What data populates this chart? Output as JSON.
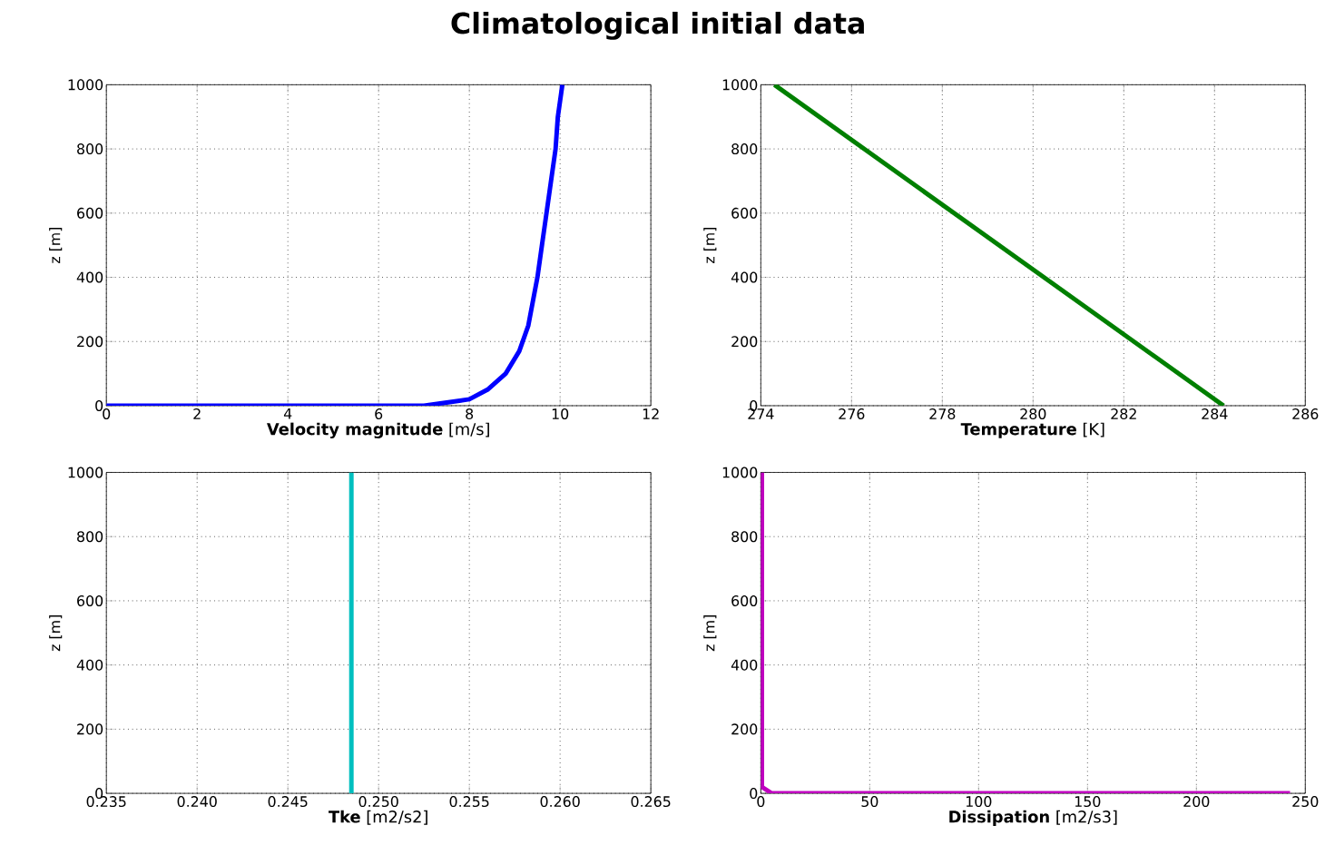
{
  "chart_data": [
    {
      "type": "line",
      "title": "Climatological initial data",
      "xlabel": "**Velocity magnitude** [m/s]",
      "ylabel": "z [m]",
      "xlim": [
        0,
        12
      ],
      "ylim": [
        0,
        1000
      ],
      "xticks": [
        0,
        2,
        4,
        6,
        8,
        10,
        12
      ],
      "yticks": [
        0,
        200,
        400,
        600,
        800,
        1000
      ],
      "grid": true,
      "series": [
        {
          "color": "#0000ff",
          "x": [
            0,
            5.5,
            6.5,
            7,
            7.5,
            8,
            8.4,
            8.8,
            9.1,
            9.3,
            9.5,
            9.6,
            9.7,
            9.8,
            9.9,
            9.95,
            10.05
          ],
          "values": [
            0,
            0,
            0,
            0,
            10,
            20,
            50,
            100,
            170,
            250,
            400,
            500,
            600,
            700,
            800,
            900,
            1000
          ]
        }
      ]
    },
    {
      "type": "line",
      "xlabel": "**Temperature** [K]",
      "ylabel": "z [m]",
      "xlim": [
        274,
        286
      ],
      "ylim": [
        0,
        1000
      ],
      "xticks": [
        274,
        276,
        278,
        280,
        282,
        284,
        286
      ],
      "yticks": [
        0,
        200,
        400,
        600,
        800,
        1000
      ],
      "grid": true,
      "series": [
        {
          "color": "#007f00",
          "x": [
            274.3,
            284.2
          ],
          "values": [
            1000,
            0
          ]
        }
      ]
    },
    {
      "type": "line",
      "xlabel": "**Tke** [m2/s2]",
      "ylabel": "z [m]",
      "xlim": [
        0.235,
        0.265
      ],
      "ylim": [
        0,
        1000
      ],
      "xticks": [
        0.235,
        {
          "value": 0.24,
          "label": "0.240"
        },
        0.245,
        {
          "value": 0.25,
          "label": "0.250"
        },
        0.255,
        {
          "value": 0.26,
          "label": "0.260"
        },
        0.265
      ],
      "yticks": [
        0,
        200,
        400,
        600,
        800,
        1000
      ],
      "grid": true,
      "series": [
        {
          "color": "#00bfbf",
          "x": [
            0.2485,
            0.2485
          ],
          "values": [
            0,
            1000
          ]
        }
      ]
    },
    {
      "type": "line",
      "xlabel": "**Dissipation** [m2/s3]",
      "ylabel": "z [m]",
      "xlim": [
        0,
        250
      ],
      "ylim": [
        0,
        1000
      ],
      "xticks": [
        0,
        50,
        100,
        150,
        200,
        250
      ],
      "yticks": [
        0,
        200,
        400,
        600,
        800,
        1000
      ],
      "grid": true,
      "series": [
        {
          "color": "#bf00bf",
          "x": [
            243,
            5,
            0.5,
            0.5
          ],
          "values": [
            0,
            0,
            20,
            1000
          ]
        }
      ]
    }
  ]
}
